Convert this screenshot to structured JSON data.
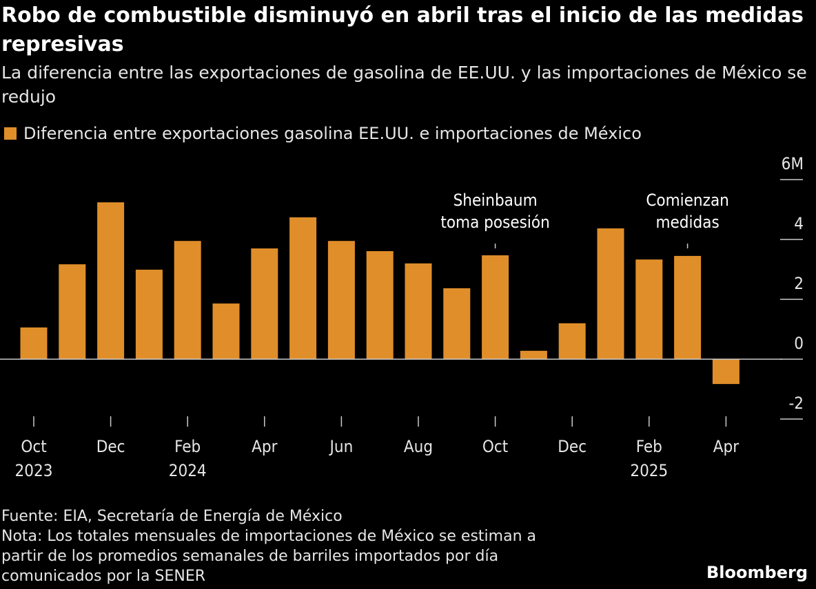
{
  "title": "Robo de combustible disminuyó en abril tras el inicio de las medidas represivas",
  "subtitle": "La diferencia entre las exportaciones de gasolina de EE.UU. y las importaciones de México se redujo",
  "chart_data": {
    "type": "bar",
    "legend": [
      "Diferencia entre exportaciones gasolina EE.UU. e importaciones de México"
    ],
    "legend_position": "top-left",
    "bar_color": "#e08e2a",
    "categories": [
      "2023-10",
      "2023-11",
      "2023-12",
      "2024-01",
      "2024-02",
      "2024-03",
      "2024-04",
      "2024-05",
      "2024-06",
      "2024-07",
      "2024-08",
      "2024-09",
      "2024-10",
      "2024-11",
      "2024-12",
      "2025-01",
      "2025-02",
      "2025-03",
      "2025-04"
    ],
    "values": [
      1.06,
      3.17,
      5.24,
      2.99,
      3.95,
      1.86,
      3.7,
      4.74,
      3.95,
      3.61,
      3.2,
      2.37,
      3.47,
      0.28,
      1.2,
      4.37,
      3.33,
      3.45,
      -0.83
    ],
    "ylim": [
      -2,
      6
    ],
    "y_ticks": [
      "-2",
      "0",
      "2",
      "4",
      "6M"
    ],
    "y_axis_side": "right",
    "x_tick_labels": [
      {
        "month": "Oct",
        "year": "2023"
      },
      {
        "month": "Dec",
        "year": ""
      },
      {
        "month": "Feb",
        "year": "2024"
      },
      {
        "month": "Apr",
        "year": ""
      },
      {
        "month": "Jun",
        "year": ""
      },
      {
        "month": "Aug",
        "year": ""
      },
      {
        "month": "Oct",
        "year": ""
      },
      {
        "month": "Dec",
        "year": ""
      },
      {
        "month": "Feb",
        "year": "2025"
      },
      {
        "month": "Apr",
        "year": ""
      }
    ],
    "annotations": [
      {
        "at": "2024-10",
        "lines": [
          "Sheinbaum",
          "toma posesión"
        ]
      },
      {
        "at": "2025-03",
        "lines": [
          "Comienzan",
          "medidas"
        ]
      }
    ]
  },
  "footer": {
    "source": "Fuente: EIA, Secretaría de Energía de México",
    "note": [
      "Nota: Los totales mensuales de importaciones de México se estiman a",
      "partir de los promedios semanales de barriles importados por día",
      "comunicados por la SENER"
    ]
  },
  "logo": "Bloomberg"
}
